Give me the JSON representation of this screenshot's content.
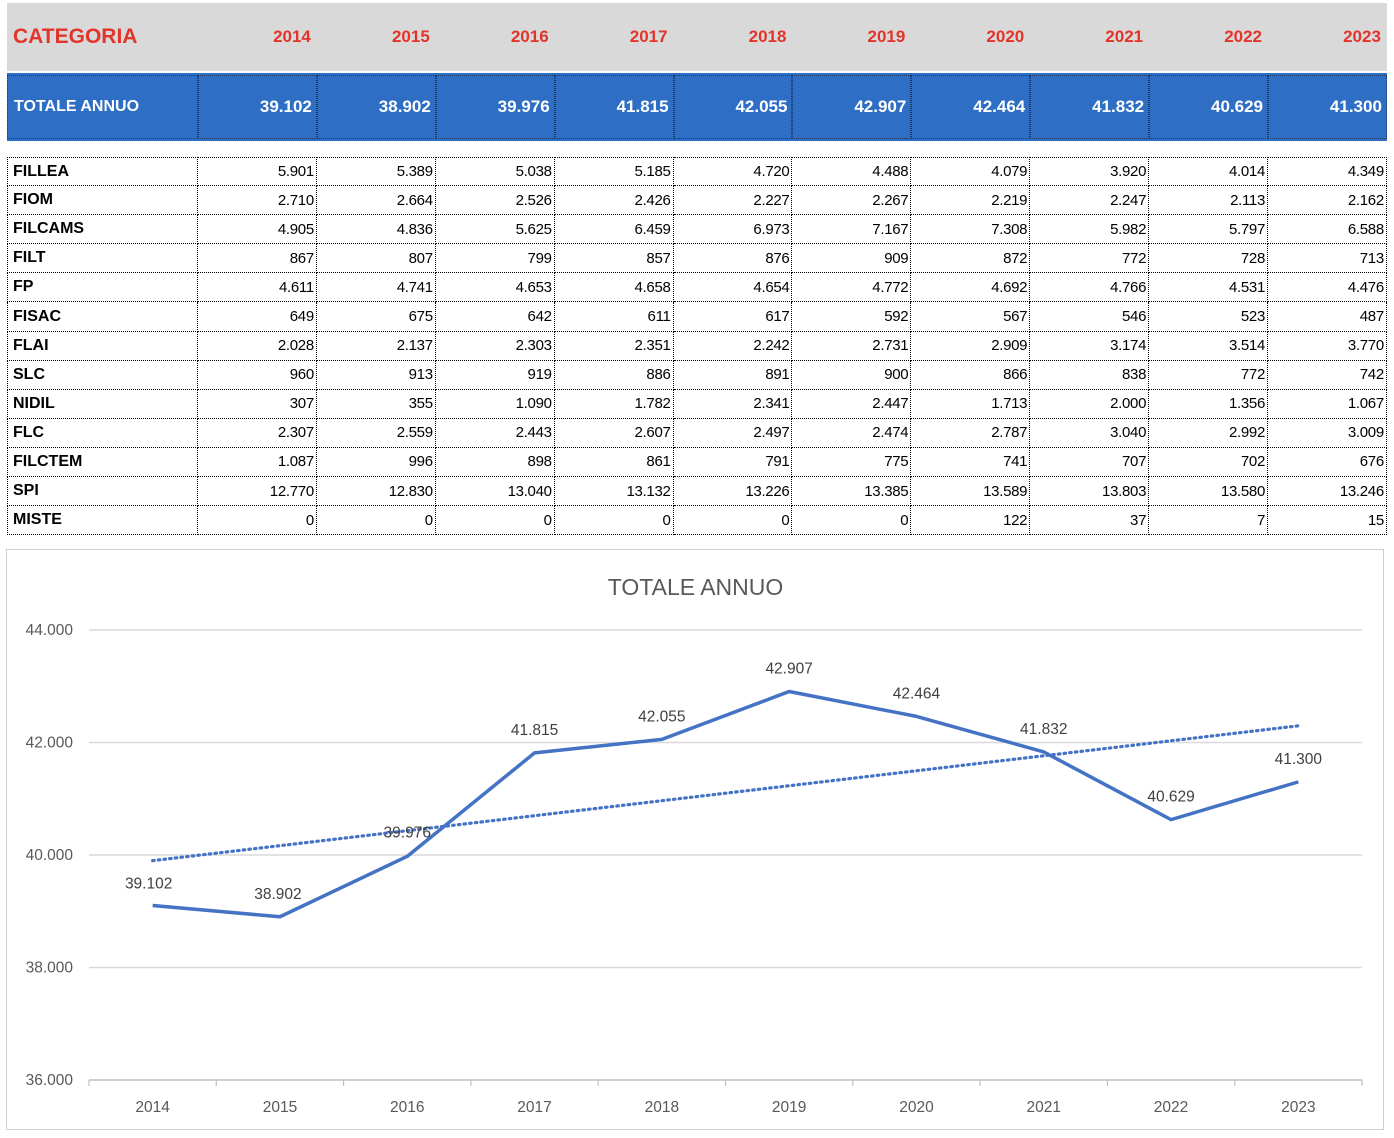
{
  "table": {
    "header_label": "CATEGORIA",
    "years": [
      "2014",
      "2015",
      "2016",
      "2017",
      "2018",
      "2019",
      "2020",
      "2021",
      "2022",
      "2023"
    ],
    "total": {
      "label": "TOTALE ANNUO",
      "values": [
        "39.102",
        "38.902",
        "39.976",
        "41.815",
        "42.055",
        "42.907",
        "42.464",
        "41.832",
        "40.629",
        "41.300"
      ]
    },
    "rows": [
      {
        "label": "FILLEA",
        "values": [
          "5.901",
          "5.389",
          "5.038",
          "5.185",
          "4.720",
          "4.488",
          "4.079",
          "3.920",
          "4.014",
          "4.349"
        ]
      },
      {
        "label": "FIOM",
        "values": [
          "2.710",
          "2.664",
          "2.526",
          "2.426",
          "2.227",
          "2.267",
          "2.219",
          "2.247",
          "2.113",
          "2.162"
        ]
      },
      {
        "label": "FILCAMS",
        "values": [
          "4.905",
          "4.836",
          "5.625",
          "6.459",
          "6.973",
          "7.167",
          "7.308",
          "5.982",
          "5.797",
          "6.588"
        ]
      },
      {
        "label": "FILT",
        "values": [
          "867",
          "807",
          "799",
          "857",
          "876",
          "909",
          "872",
          "772",
          "728",
          "713"
        ]
      },
      {
        "label": "FP",
        "values": [
          "4.611",
          "4.741",
          "4.653",
          "4.658",
          "4.654",
          "4.772",
          "4.692",
          "4.766",
          "4.531",
          "4.476"
        ]
      },
      {
        "label": "FISAC",
        "values": [
          "649",
          "675",
          "642",
          "611",
          "617",
          "592",
          "567",
          "546",
          "523",
          "487"
        ]
      },
      {
        "label": "FLAI",
        "values": [
          "2.028",
          "2.137",
          "2.303",
          "2.351",
          "2.242",
          "2.731",
          "2.909",
          "3.174",
          "3.514",
          "3.770"
        ]
      },
      {
        "label": "SLC",
        "values": [
          "960",
          "913",
          "919",
          "886",
          "891",
          "900",
          "866",
          "838",
          "772",
          "742"
        ]
      },
      {
        "label": "NIDIL",
        "values": [
          "307",
          "355",
          "1.090",
          "1.782",
          "2.341",
          "2.447",
          "1.713",
          "2.000",
          "1.356",
          "1.067"
        ]
      },
      {
        "label": "FLC",
        "values": [
          "2.307",
          "2.559",
          "2.443",
          "2.607",
          "2.497",
          "2.474",
          "2.787",
          "3.040",
          "2.992",
          "3.009"
        ]
      },
      {
        "label": "FILCTEM",
        "values": [
          "1.087",
          "996",
          "898",
          "861",
          "791",
          "775",
          "741",
          "707",
          "702",
          "676"
        ]
      },
      {
        "label": "SPI",
        "values": [
          "12.770",
          "12.830",
          "13.040",
          "13.132",
          "13.226",
          "13.385",
          "13.589",
          "13.803",
          "13.580",
          "13.246"
        ]
      },
      {
        "label": "MISTE",
        "values": [
          "0",
          "0",
          "0",
          "0",
          "0",
          "0",
          "122",
          "37",
          "7",
          "15"
        ]
      }
    ]
  },
  "chart_data": {
    "type": "line",
    "title": "TOTALE ANNUO",
    "categories": [
      "2014",
      "2015",
      "2016",
      "2017",
      "2018",
      "2019",
      "2020",
      "2021",
      "2022",
      "2023"
    ],
    "series": [
      {
        "values": [
          39102,
          38902,
          39976,
          41815,
          42055,
          42907,
          42464,
          41832,
          40629,
          41300
        ],
        "color": "#4472c4"
      }
    ],
    "data_labels": [
      "39.102",
      "38.902",
      "39.976",
      "41.815",
      "42.055",
      "42.907",
      "42.464",
      "41.832",
      "40.629",
      "41.300"
    ],
    "trendline": {
      "type": "linear",
      "style": "dotted",
      "color": "#4472c4"
    },
    "ylim": [
      36000,
      44000
    ],
    "yticks": [
      36000,
      38000,
      40000,
      42000,
      44000
    ],
    "ytick_labels": [
      "36.000",
      "38.000",
      "40.000",
      "42.000",
      "44.000"
    ],
    "grid": true,
    "legend": "none",
    "xlabel": "",
    "ylabel": ""
  },
  "colors": {
    "header_bg": "#d9d9d9",
    "header_text": "#e3342a",
    "total_bg": "#2e6fc5",
    "line": "#4472c4"
  }
}
